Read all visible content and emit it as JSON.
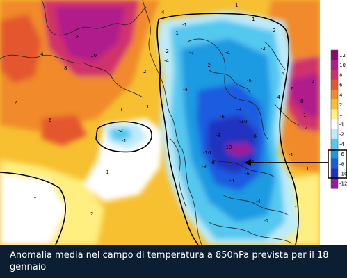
{
  "caption": "Anomalia media nel campo di temperatura a 850hPa prevista per il 18 gennaio",
  "colorbar": {
    "ticks": [
      "12",
      "10",
      "8",
      "6",
      "4",
      "2",
      "1",
      "-1",
      "-2",
      "-4",
      "-6",
      "-8",
      "-10",
      "-12"
    ],
    "colors": [
      "#8b0a6e",
      "#b01e8c",
      "#d0306c",
      "#e4562e",
      "#f08a2a",
      "#f6c030",
      "#ffee80",
      "#ffffff",
      "#bdebf8",
      "#55c8f0",
      "#1a9ae2",
      "#1a5ce0",
      "#2030c0",
      "#9a1a9a"
    ]
  },
  "map_labels": {
    "top_left": [
      "4",
      "8",
      "10",
      "8",
      "2",
      "1",
      "1",
      "-1",
      "-2",
      "6",
      "1",
      "2",
      "2",
      "-1",
      "-2",
      "4",
      "-2",
      "-1",
      "1"
    ],
    "center_negative": [
      "-2",
      "-4",
      "-4",
      "-6",
      "-8",
      "-10",
      "-10",
      "-10",
      "-10",
      "-8",
      "-8",
      "-6",
      "-6",
      "-4",
      "-4",
      "-2",
      "-4",
      "-6",
      "-8",
      "-4",
      "-2"
    ],
    "right_positive": [
      "1",
      "2",
      "4",
      "6",
      "8",
      "1",
      "-1",
      "2",
      "4",
      "1",
      "-1",
      "-1"
    ]
  }
}
